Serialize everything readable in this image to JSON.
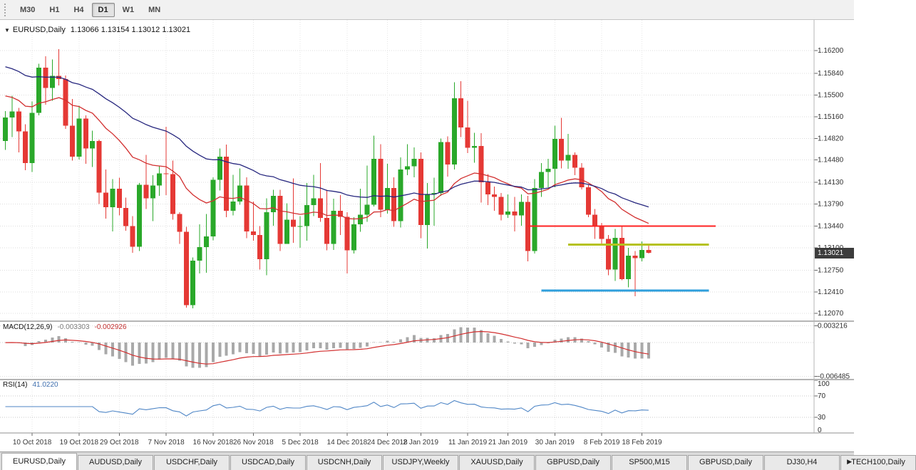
{
  "toolbar": {
    "periods": [
      {
        "label": "M30"
      },
      {
        "label": "H1"
      },
      {
        "label": "H4"
      },
      {
        "label": "D1",
        "active": true
      },
      {
        "label": "W1"
      },
      {
        "label": "MN"
      }
    ]
  },
  "chart": {
    "collapse_icon": "▼",
    "title_symbol": "EURUSD,Daily",
    "title_ohlc": "1.13066 1.13154 1.13012 1.13021",
    "current_price": "1.13021"
  },
  "chart_data": [
    {
      "type": "candlestick",
      "symbol": "EURUSD",
      "timeframe": "Daily",
      "ohlc_display": {
        "open": "1.13066",
        "high": "1.13154",
        "low": "1.13012",
        "close": "1.13021"
      },
      "ylim": [
        1.1196,
        1.1668
      ],
      "y_ticks": [
        "1.16200",
        "1.15840",
        "1.15500",
        "1.15160",
        "1.14820",
        "1.14480",
        "1.14130",
        "1.13790",
        "1.13440",
        "1.13100",
        "1.12750",
        "1.12410",
        "1.12070"
      ],
      "x_ticks": [
        [
          "10 Oct 2018",
          4
        ],
        [
          "19 Oct 2018",
          11
        ],
        [
          "29 Oct 2018",
          17
        ],
        [
          "7 Nov 2018",
          24
        ],
        [
          "16 Nov 2018",
          31
        ],
        [
          "26 Nov 2018",
          37
        ],
        [
          "5 Dec 2018",
          44
        ],
        [
          "14 Dec 2018",
          51
        ],
        [
          "24 Dec 2018",
          57
        ],
        [
          "2 Jan 2019",
          62
        ],
        [
          "11 Jan 2019",
          69
        ],
        [
          "21 Jan 2019",
          75
        ],
        [
          "30 Jan 2019",
          82
        ],
        [
          "8 Feb 2019",
          89
        ],
        [
          "18 Feb 2019",
          95
        ]
      ],
      "candles": [
        [
          "2018-10-04",
          1.1478,
          1.1525,
          1.1464,
          1.1515
        ],
        [
          "2018-10-05",
          1.1515,
          1.1549,
          1.1484,
          1.1524
        ],
        [
          "2018-10-08",
          1.1524,
          1.153,
          1.146,
          1.1493
        ],
        [
          "2018-10-09",
          1.1493,
          1.1504,
          1.1432,
          1.1443
        ],
        [
          "2018-10-10",
          1.1443,
          1.154,
          1.1429,
          1.1522
        ],
        [
          "2018-10-11",
          1.1522,
          1.1599,
          1.1518,
          1.1593
        ],
        [
          "2018-10-12",
          1.1593,
          1.1611,
          1.1535,
          1.1561
        ],
        [
          "2018-10-15",
          1.1561,
          1.1606,
          1.1541,
          1.158
        ],
        [
          "2018-10-16",
          1.158,
          1.1622,
          1.1565,
          1.1575
        ],
        [
          "2018-10-17",
          1.1575,
          1.1581,
          1.1497,
          1.1502
        ],
        [
          "2018-10-18",
          1.1502,
          1.1544,
          1.1447,
          1.1453
        ],
        [
          "2018-10-19",
          1.1453,
          1.1533,
          1.1449,
          1.1513
        ],
        [
          "2018-10-22",
          1.1513,
          1.1518,
          1.1442,
          1.1466
        ],
        [
          "2018-10-23",
          1.1466,
          1.1494,
          1.1437,
          1.1478
        ],
        [
          "2018-10-24",
          1.1478,
          1.148,
          1.1379,
          1.1397
        ],
        [
          "2018-10-25",
          1.1397,
          1.1433,
          1.1356,
          1.1374
        ],
        [
          "2018-10-26",
          1.1374,
          1.1418,
          1.1336,
          1.1403
        ],
        [
          "2018-10-29",
          1.1403,
          1.142,
          1.1361,
          1.1373
        ],
        [
          "2018-10-30",
          1.1373,
          1.1389,
          1.1337,
          1.1344
        ],
        [
          "2018-10-31",
          1.1344,
          1.136,
          1.1302,
          1.1312
        ],
        [
          "2018-11-01",
          1.1312,
          1.1412,
          1.1305,
          1.1409
        ],
        [
          "2018-11-02",
          1.1409,
          1.1456,
          1.1371,
          1.1388
        ],
        [
          "2018-11-05",
          1.1388,
          1.1424,
          1.1352,
          1.1408
        ],
        [
          "2018-11-06",
          1.1408,
          1.1439,
          1.1392,
          1.1427
        ],
        [
          "2018-11-07",
          1.1427,
          1.15,
          1.1393,
          1.1426
        ],
        [
          "2018-11-08",
          1.1426,
          1.1447,
          1.1354,
          1.1363
        ],
        [
          "2018-11-09",
          1.1363,
          1.1366,
          1.1316,
          1.1335
        ],
        [
          "2018-11-12",
          1.1335,
          1.1343,
          1.1216,
          1.122
        ],
        [
          "2018-11-13",
          1.122,
          1.1295,
          1.1215,
          1.129
        ],
        [
          "2018-11-14",
          1.129,
          1.1347,
          1.127,
          1.1311
        ],
        [
          "2018-11-15",
          1.1311,
          1.1363,
          1.1271,
          1.1328
        ],
        [
          "2018-11-16",
          1.1328,
          1.1421,
          1.1322,
          1.1417
        ],
        [
          "2018-11-19",
          1.1417,
          1.1466,
          1.14,
          1.1453
        ],
        [
          "2018-11-20",
          1.1453,
          1.1472,
          1.1358,
          1.1368
        ],
        [
          "2018-11-21",
          1.1368,
          1.1425,
          1.1361,
          1.1383
        ],
        [
          "2018-11-22",
          1.1383,
          1.1435,
          1.1378,
          1.1408
        ],
        [
          "2018-11-23",
          1.1408,
          1.1421,
          1.1325,
          1.1336
        ],
        [
          "2018-11-26",
          1.1336,
          1.1383,
          1.1321,
          1.133
        ],
        [
          "2018-11-27",
          1.133,
          1.1344,
          1.1276,
          1.1292
        ],
        [
          "2018-11-28",
          1.1292,
          1.1388,
          1.1267,
          1.1366
        ],
        [
          "2018-11-29",
          1.1366,
          1.1401,
          1.1345,
          1.1392
        ],
        [
          "2018-11-30",
          1.1392,
          1.1401,
          1.1305,
          1.1316
        ],
        [
          "2018-12-03",
          1.1316,
          1.138,
          1.1316,
          1.1354
        ],
        [
          "2018-12-04",
          1.1354,
          1.1419,
          1.1318,
          1.1343
        ],
        [
          "2018-12-05",
          1.1343,
          1.136,
          1.131,
          1.1344
        ],
        [
          "2018-12-06",
          1.1344,
          1.1412,
          1.1321,
          1.1377
        ],
        [
          "2018-12-07",
          1.1377,
          1.1425,
          1.136,
          1.1388
        ],
        [
          "2018-12-10",
          1.1388,
          1.1443,
          1.1351,
          1.1357
        ],
        [
          "2018-12-11",
          1.1357,
          1.1401,
          1.1306,
          1.1316
        ],
        [
          "2018-12-12",
          1.1316,
          1.1387,
          1.1307,
          1.1368
        ],
        [
          "2018-12-13",
          1.1368,
          1.1393,
          1.133,
          1.1359
        ],
        [
          "2018-12-14",
          1.1359,
          1.1366,
          1.127,
          1.1306
        ],
        [
          "2018-12-17",
          1.1306,
          1.1358,
          1.1301,
          1.1347
        ],
        [
          "2018-12-18",
          1.1347,
          1.1403,
          1.1335,
          1.1362
        ],
        [
          "2018-12-19",
          1.1362,
          1.1439,
          1.1351,
          1.1378
        ],
        [
          "2018-12-20",
          1.1378,
          1.1486,
          1.1375,
          1.145
        ],
        [
          "2018-12-21",
          1.145,
          1.1473,
          1.1358,
          1.137
        ],
        [
          "2018-12-24",
          1.137,
          1.1442,
          1.1364,
          1.1404
        ],
        [
          "2018-12-26",
          1.1404,
          1.1421,
          1.1343,
          1.1352
        ],
        [
          "2018-12-27",
          1.1352,
          1.1452,
          1.1342,
          1.1433
        ],
        [
          "2018-12-28",
          1.1433,
          1.1473,
          1.1424,
          1.1438
        ],
        [
          "2018-12-31",
          1.1438,
          1.1468,
          1.1421,
          1.145
        ],
        [
          "2019-01-02",
          1.145,
          1.146,
          1.1325,
          1.1346
        ],
        [
          "2019-01-03",
          1.1346,
          1.1412,
          1.1309,
          1.1394
        ],
        [
          "2019-01-04",
          1.1394,
          1.142,
          1.1345,
          1.1396
        ],
        [
          "2019-01-07",
          1.1396,
          1.1482,
          1.1392,
          1.1476
        ],
        [
          "2019-01-08",
          1.1476,
          1.1485,
          1.1422,
          1.1441
        ],
        [
          "2019-01-09",
          1.1441,
          1.157,
          1.1433,
          1.1545
        ],
        [
          "2019-01-10",
          1.1545,
          1.1572,
          1.1484,
          1.1499
        ],
        [
          "2019-01-11",
          1.1499,
          1.1541,
          1.1459,
          1.1467
        ],
        [
          "2019-01-14",
          1.1467,
          1.1491,
          1.1444,
          1.147
        ],
        [
          "2019-01-15",
          1.147,
          1.149,
          1.1381,
          1.1413
        ],
        [
          "2019-01-16",
          1.1413,
          1.1426,
          1.1377,
          1.1394
        ],
        [
          "2019-01-17",
          1.1394,
          1.1406,
          1.1368,
          1.139
        ],
        [
          "2019-01-18",
          1.139,
          1.1396,
          1.1353,
          1.1362
        ],
        [
          "2019-01-21",
          1.1362,
          1.1394,
          1.1357,
          1.1367
        ],
        [
          "2019-01-22",
          1.1367,
          1.139,
          1.1336,
          1.1361
        ],
        [
          "2019-01-23",
          1.1361,
          1.1394,
          1.1345,
          1.1382
        ],
        [
          "2019-01-24",
          1.1382,
          1.1392,
          1.1289,
          1.1305
        ],
        [
          "2019-01-25",
          1.1305,
          1.1418,
          1.1301,
          1.1404
        ],
        [
          "2019-01-28",
          1.1404,
          1.1443,
          1.139,
          1.1429
        ],
        [
          "2019-01-29",
          1.1429,
          1.145,
          1.1405,
          1.1434
        ],
        [
          "2019-01-30",
          1.1434,
          1.1502,
          1.1405,
          1.1481
        ],
        [
          "2019-01-31",
          1.1481,
          1.1514,
          1.1435,
          1.1447
        ],
        [
          "2019-02-01",
          1.1447,
          1.1489,
          1.1434,
          1.1456
        ],
        [
          "2019-02-04",
          1.1456,
          1.146,
          1.1424,
          1.1436
        ],
        [
          "2019-02-05",
          1.1436,
          1.1443,
          1.1402,
          1.1405
        ],
        [
          "2019-02-06",
          1.1405,
          1.141,
          1.1358,
          1.1362
        ],
        [
          "2019-02-07",
          1.1362,
          1.1371,
          1.1324,
          1.1343
        ],
        [
          "2019-02-08",
          1.1343,
          1.1349,
          1.1315,
          1.1324
        ],
        [
          "2019-02-11",
          1.1324,
          1.133,
          1.1267,
          1.1276
        ],
        [
          "2019-02-12",
          1.1276,
          1.134,
          1.1258,
          1.1326
        ],
        [
          "2019-02-13",
          1.1326,
          1.1344,
          1.1259,
          1.1261
        ],
        [
          "2019-02-14",
          1.1261,
          1.131,
          1.1248,
          1.1298
        ],
        [
          "2019-02-15",
          1.1298,
          1.1305,
          1.1234,
          1.1294
        ],
        [
          "2019-02-18",
          1.1294,
          1.132,
          1.1289,
          1.1307
        ],
        [
          "2019-02-19",
          1.13066,
          1.13154,
          1.13012,
          1.13021
        ]
      ],
      "overlays": [
        {
          "name": "ma-fast-line",
          "type": "ema",
          "period": 21,
          "color": "#d22f2f",
          "seed": 1.1552
        },
        {
          "name": "ma-slow-line",
          "type": "ema",
          "period": 45,
          "color": "#26267e",
          "seed": 1.1598
        }
      ],
      "hlines": [
        {
          "price": 1.1344,
          "from_index": 78,
          "to_index": 106,
          "color": "#ff2020",
          "width": 2
        },
        {
          "price": 1.1315,
          "from_index": 84,
          "to_index": 105,
          "color": "#b5c21e",
          "width": 3
        },
        {
          "price": 1.1243,
          "from_index": 80,
          "to_index": 105,
          "color": "#2f9fdc",
          "width": 3
        }
      ],
      "colors": {
        "up": "#2aa82a",
        "down": "#e53935",
        "grid": "#dcdcdc",
        "bg": "#ffffff"
      }
    },
    {
      "type": "line",
      "name": "MACD",
      "label": "MACD(12,26,9)",
      "values_text": [
        "-0.003303",
        "-0.002926"
      ],
      "params": {
        "fast": 12,
        "slow": 26,
        "signal": 9
      },
      "ylim": [
        -0.007,
        0.004
      ],
      "y_ticks": [
        "0.003216",
        "-0.006485"
      ],
      "colors": {
        "histogram": "#a9a9a9",
        "signal": "#d22f2f"
      }
    },
    {
      "type": "line",
      "name": "RSI",
      "label": "RSI(14)",
      "value_text": "41.0220",
      "period": 14,
      "ylim": [
        0,
        100
      ],
      "y_ticks": [
        "100",
        "70",
        "30",
        "0"
      ],
      "levels": [
        70,
        30
      ],
      "colors": {
        "line": "#4f86c6"
      }
    }
  ],
  "tabs": {
    "scroll_right_icon": "▶",
    "items": [
      {
        "label": "EURUSD,Daily",
        "active": true
      },
      {
        "label": "AUDUSD,Daily"
      },
      {
        "label": "USDCHF,Daily"
      },
      {
        "label": "USDCAD,Daily"
      },
      {
        "label": "USDCNH,Daily"
      },
      {
        "label": "USDJPY,Weekly"
      },
      {
        "label": "XAUUSD,Daily"
      },
      {
        "label": "GBPUSD,Daily"
      },
      {
        "label": "SP500,M15"
      },
      {
        "label": "GBPUSD,Daily"
      },
      {
        "label": "DJ30,H4"
      },
      {
        "label": "TECH100,Daily"
      }
    ]
  }
}
